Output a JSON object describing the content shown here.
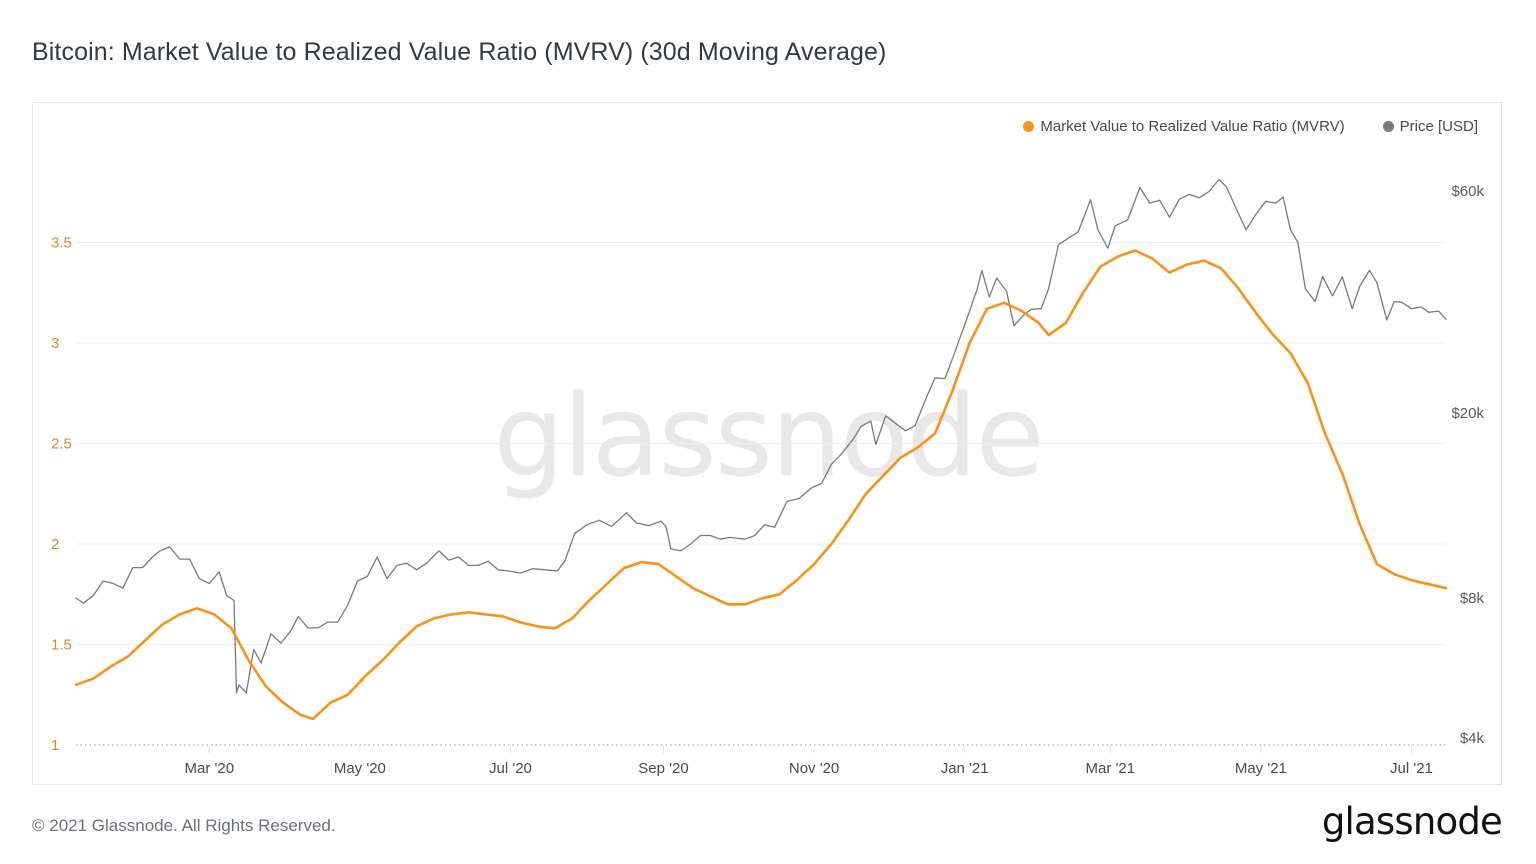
{
  "title": "Bitcoin: Market Value to Realized Value Ratio (MVRV) (30d Moving Average)",
  "footer": {
    "copyright": "© 2021 Glassnode. All Rights Reserved.",
    "logo": "glassnode"
  },
  "watermark": "glassnode",
  "colors": {
    "mvrv": "#f7931a",
    "price": "#7a7a7a",
    "grid": "#eeeeee",
    "left_axis_text": "#d98a2e"
  },
  "legend": [
    {
      "label": "Market Value to Realized Value Ratio (MVRV)",
      "color": "#f7931a"
    },
    {
      "label": "Price [USD]",
      "color": "#7a7a7a"
    }
  ],
  "chart_data": {
    "type": "line",
    "title": "Bitcoin: Market Value to Realized Value Ratio (MVRV) (30d Moving Average)",
    "xlabel": "",
    "ylabel": "",
    "x_range": [
      "2020-01-07",
      "2021-07-15"
    ],
    "x_ticks": [
      {
        "date": "2020-03-01",
        "label": "Mar '20"
      },
      {
        "date": "2020-05-01",
        "label": "May '20"
      },
      {
        "date": "2020-07-01",
        "label": "Jul '20"
      },
      {
        "date": "2020-09-01",
        "label": "Sep '20"
      },
      {
        "date": "2020-11-01",
        "label": "Nov '20"
      },
      {
        "date": "2021-01-01",
        "label": "Jan '21"
      },
      {
        "date": "2021-03-01",
        "label": "Mar '21"
      },
      {
        "date": "2021-05-01",
        "label": "May '21"
      },
      {
        "date": "2021-07-01",
        "label": "Jul '21"
      }
    ],
    "y_left": {
      "name": "MVRV",
      "scale": "linear",
      "range": [
        1,
        4.0
      ],
      "ticks": [
        1,
        1.5,
        2,
        2.5,
        3,
        3.5
      ],
      "tick_labels": [
        "1",
        "1.5",
        "2",
        "2.5",
        "3",
        "3.5"
      ],
      "grid": true
    },
    "y_right": {
      "name": "Price [USD]",
      "scale": "log",
      "range": [
        4000,
        72000
      ],
      "ticks": [
        4000,
        8000,
        20000,
        60000
      ],
      "tick_labels": [
        "$4k",
        "$8k",
        "$20k",
        "$60k"
      ]
    },
    "legend_position": "top-right",
    "series": [
      {
        "name": "Market Value to Realized Value Ratio (MVRV)",
        "axis": "left",
        "color": "#f7931a",
        "points": [
          [
            "2020-01-07",
            1.3
          ],
          [
            "2020-01-14",
            1.33
          ],
          [
            "2020-01-21",
            1.39
          ],
          [
            "2020-01-28",
            1.44
          ],
          [
            "2020-02-04",
            1.52
          ],
          [
            "2020-02-11",
            1.6
          ],
          [
            "2020-02-18",
            1.65
          ],
          [
            "2020-02-25",
            1.68
          ],
          [
            "2020-03-03",
            1.65
          ],
          [
            "2020-03-10",
            1.58
          ],
          [
            "2020-03-17",
            1.42
          ],
          [
            "2020-03-24",
            1.29
          ],
          [
            "2020-03-31",
            1.21
          ],
          [
            "2020-04-07",
            1.15
          ],
          [
            "2020-04-12",
            1.13
          ],
          [
            "2020-04-19",
            1.21
          ],
          [
            "2020-04-26",
            1.25
          ],
          [
            "2020-05-03",
            1.34
          ],
          [
            "2020-05-10",
            1.42
          ],
          [
            "2020-05-17",
            1.51
          ],
          [
            "2020-05-24",
            1.59
          ],
          [
            "2020-05-31",
            1.63
          ],
          [
            "2020-06-07",
            1.65
          ],
          [
            "2020-06-14",
            1.66
          ],
          [
            "2020-06-21",
            1.65
          ],
          [
            "2020-06-28",
            1.64
          ],
          [
            "2020-07-05",
            1.61
          ],
          [
            "2020-07-12",
            1.59
          ],
          [
            "2020-07-19",
            1.58
          ],
          [
            "2020-07-26",
            1.63
          ],
          [
            "2020-08-02",
            1.72
          ],
          [
            "2020-08-09",
            1.8
          ],
          [
            "2020-08-16",
            1.88
          ],
          [
            "2020-08-23",
            1.91
          ],
          [
            "2020-08-30",
            1.9
          ],
          [
            "2020-09-06",
            1.84
          ],
          [
            "2020-09-13",
            1.78
          ],
          [
            "2020-09-20",
            1.74
          ],
          [
            "2020-09-27",
            1.7
          ],
          [
            "2020-10-04",
            1.7
          ],
          [
            "2020-10-11",
            1.73
          ],
          [
            "2020-10-18",
            1.75
          ],
          [
            "2020-10-25",
            1.82
          ],
          [
            "2020-11-01",
            1.9
          ],
          [
            "2020-11-08",
            2.0
          ],
          [
            "2020-11-15",
            2.12
          ],
          [
            "2020-11-22",
            2.25
          ],
          [
            "2020-11-29",
            2.34
          ],
          [
            "2020-12-06",
            2.43
          ],
          [
            "2020-12-13",
            2.48
          ],
          [
            "2020-12-20",
            2.55
          ],
          [
            "2020-12-27",
            2.76
          ],
          [
            "2021-01-03",
            3.0
          ],
          [
            "2021-01-10",
            3.17
          ],
          [
            "2021-01-17",
            3.2
          ],
          [
            "2021-01-24",
            3.16
          ],
          [
            "2021-01-31",
            3.1
          ],
          [
            "2021-02-04",
            3.04
          ],
          [
            "2021-02-11",
            3.1
          ],
          [
            "2021-02-18",
            3.25
          ],
          [
            "2021-02-25",
            3.38
          ],
          [
            "2021-03-04",
            3.43
          ],
          [
            "2021-03-11",
            3.46
          ],
          [
            "2021-03-18",
            3.42
          ],
          [
            "2021-03-25",
            3.35
          ],
          [
            "2021-04-01",
            3.39
          ],
          [
            "2021-04-08",
            3.41
          ],
          [
            "2021-04-15",
            3.37
          ],
          [
            "2021-04-22",
            3.27
          ],
          [
            "2021-04-29",
            3.15
          ],
          [
            "2021-05-06",
            3.04
          ],
          [
            "2021-05-13",
            2.95
          ],
          [
            "2021-05-20",
            2.8
          ],
          [
            "2021-05-27",
            2.55
          ],
          [
            "2021-06-03",
            2.35
          ],
          [
            "2021-06-10",
            2.1
          ],
          [
            "2021-06-17",
            1.9
          ],
          [
            "2021-06-24",
            1.85
          ],
          [
            "2021-07-01",
            1.82
          ],
          [
            "2021-07-08",
            1.8
          ],
          [
            "2021-07-15",
            1.78
          ]
        ]
      },
      {
        "name": "Price [USD]",
        "axis": "right",
        "color": "#7a7a7a",
        "points": [
          [
            "2020-01-07",
            8000
          ],
          [
            "2020-01-10",
            7800
          ],
          [
            "2020-01-14",
            8100
          ],
          [
            "2020-01-18",
            8700
          ],
          [
            "2020-01-22",
            8600
          ],
          [
            "2020-01-26",
            8400
          ],
          [
            "2020-01-30",
            9300
          ],
          [
            "2020-02-03",
            9300
          ],
          [
            "2020-02-07",
            9800
          ],
          [
            "2020-02-10",
            10100
          ],
          [
            "2020-02-14",
            10300
          ],
          [
            "2020-02-18",
            9700
          ],
          [
            "2020-02-22",
            9700
          ],
          [
            "2020-02-26",
            8800
          ],
          [
            "2020-03-01",
            8600
          ],
          [
            "2020-03-05",
            9100
          ],
          [
            "2020-03-08",
            8100
          ],
          [
            "2020-03-11",
            7900
          ],
          [
            "2020-03-12",
            5000
          ],
          [
            "2020-03-13",
            5200
          ],
          [
            "2020-03-16",
            5000
          ],
          [
            "2020-03-19",
            6200
          ],
          [
            "2020-03-22",
            5800
          ],
          [
            "2020-03-26",
            6700
          ],
          [
            "2020-03-30",
            6400
          ],
          [
            "2020-04-03",
            6800
          ],
          [
            "2020-04-06",
            7300
          ],
          [
            "2020-04-10",
            6900
          ],
          [
            "2020-04-14",
            6900
          ],
          [
            "2020-04-18",
            7100
          ],
          [
            "2020-04-22",
            7100
          ],
          [
            "2020-04-26",
            7700
          ],
          [
            "2020-04-30",
            8700
          ],
          [
            "2020-05-04",
            8900
          ],
          [
            "2020-05-08",
            9800
          ],
          [
            "2020-05-12",
            8800
          ],
          [
            "2020-05-16",
            9400
          ],
          [
            "2020-05-20",
            9500
          ],
          [
            "2020-05-24",
            9200
          ],
          [
            "2020-05-28",
            9500
          ],
          [
            "2020-06-02",
            10100
          ],
          [
            "2020-06-06",
            9650
          ],
          [
            "2020-06-10",
            9800
          ],
          [
            "2020-06-14",
            9400
          ],
          [
            "2020-06-18",
            9400
          ],
          [
            "2020-06-22",
            9600
          ],
          [
            "2020-06-26",
            9200
          ],
          [
            "2020-06-30",
            9150
          ],
          [
            "2020-07-05",
            9050
          ],
          [
            "2020-07-10",
            9250
          ],
          [
            "2020-07-15",
            9200
          ],
          [
            "2020-07-20",
            9150
          ],
          [
            "2020-07-23",
            9600
          ],
          [
            "2020-07-27",
            11000
          ],
          [
            "2020-08-01",
            11500
          ],
          [
            "2020-08-06",
            11750
          ],
          [
            "2020-08-11",
            11400
          ],
          [
            "2020-08-17",
            12200
          ],
          [
            "2020-08-21",
            11600
          ],
          [
            "2020-08-26",
            11450
          ],
          [
            "2020-08-31",
            11700
          ],
          [
            "2020-09-02",
            11400
          ],
          [
            "2020-09-04",
            10200
          ],
          [
            "2020-09-08",
            10100
          ],
          [
            "2020-09-12",
            10450
          ],
          [
            "2020-09-16",
            10900
          ],
          [
            "2020-09-20",
            10900
          ],
          [
            "2020-09-24",
            10700
          ],
          [
            "2020-09-28",
            10800
          ],
          [
            "2020-10-04",
            10700
          ],
          [
            "2020-10-08",
            10900
          ],
          [
            "2020-10-12",
            11500
          ],
          [
            "2020-10-16",
            11350
          ],
          [
            "2020-10-21",
            12900
          ],
          [
            "2020-10-26",
            13100
          ],
          [
            "2020-10-31",
            13800
          ],
          [
            "2020-11-04",
            14100
          ],
          [
            "2020-11-08",
            15500
          ],
          [
            "2020-11-12",
            16300
          ],
          [
            "2020-11-17",
            17600
          ],
          [
            "2020-11-20",
            18700
          ],
          [
            "2020-11-24",
            19200
          ],
          [
            "2020-11-26",
            17100
          ],
          [
            "2020-11-30",
            19700
          ],
          [
            "2020-12-04",
            19000
          ],
          [
            "2020-12-08",
            18300
          ],
          [
            "2020-12-12",
            18800
          ],
          [
            "2020-12-16",
            21300
          ],
          [
            "2020-12-20",
            23800
          ],
          [
            "2020-12-24",
            23700
          ],
          [
            "2020-12-28",
            27000
          ],
          [
            "2021-01-02",
            32000
          ],
          [
            "2021-01-06",
            36800
          ],
          [
            "2021-01-08",
            40500
          ],
          [
            "2021-01-11",
            35500
          ],
          [
            "2021-01-14",
            39000
          ],
          [
            "2021-01-18",
            36500
          ],
          [
            "2021-01-21",
            30800
          ],
          [
            "2021-01-25",
            32500
          ],
          [
            "2021-01-28",
            33400
          ],
          [
            "2021-02-01",
            33500
          ],
          [
            "2021-02-04",
            37000
          ],
          [
            "2021-02-08",
            46000
          ],
          [
            "2021-02-12",
            47500
          ],
          [
            "2021-02-16",
            49000
          ],
          [
            "2021-02-21",
            57500
          ],
          [
            "2021-02-24",
            49500
          ],
          [
            "2021-02-28",
            45200
          ],
          [
            "2021-03-03",
            50500
          ],
          [
            "2021-03-08",
            52000
          ],
          [
            "2021-03-13",
            61000
          ],
          [
            "2021-03-17",
            56500
          ],
          [
            "2021-03-21",
            57300
          ],
          [
            "2021-03-25",
            52700
          ],
          [
            "2021-03-29",
            57600
          ],
          [
            "2021-04-02",
            59000
          ],
          [
            "2021-04-06",
            58000
          ],
          [
            "2021-04-10",
            59800
          ],
          [
            "2021-04-14",
            63500
          ],
          [
            "2021-04-17",
            61300
          ],
          [
            "2021-04-21",
            55000
          ],
          [
            "2021-04-25",
            49500
          ],
          [
            "2021-04-29",
            53500
          ],
          [
            "2021-05-03",
            57000
          ],
          [
            "2021-05-07",
            56500
          ],
          [
            "2021-05-10",
            58200
          ],
          [
            "2021-05-13",
            49500
          ],
          [
            "2021-05-16",
            46500
          ],
          [
            "2021-05-19",
            37000
          ],
          [
            "2021-05-23",
            34700
          ],
          [
            "2021-05-26",
            39300
          ],
          [
            "2021-05-30",
            35700
          ],
          [
            "2021-06-03",
            39200
          ],
          [
            "2021-06-07",
            33500
          ],
          [
            "2021-06-10",
            37400
          ],
          [
            "2021-06-14",
            40500
          ],
          [
            "2021-06-17",
            38100
          ],
          [
            "2021-06-21",
            31700
          ],
          [
            "2021-06-24",
            34700
          ],
          [
            "2021-06-27",
            34600
          ],
          [
            "2021-07-01",
            33500
          ],
          [
            "2021-07-05",
            33800
          ],
          [
            "2021-07-08",
            32900
          ],
          [
            "2021-07-12",
            33100
          ],
          [
            "2021-07-15",
            31800
          ]
        ]
      }
    ]
  }
}
